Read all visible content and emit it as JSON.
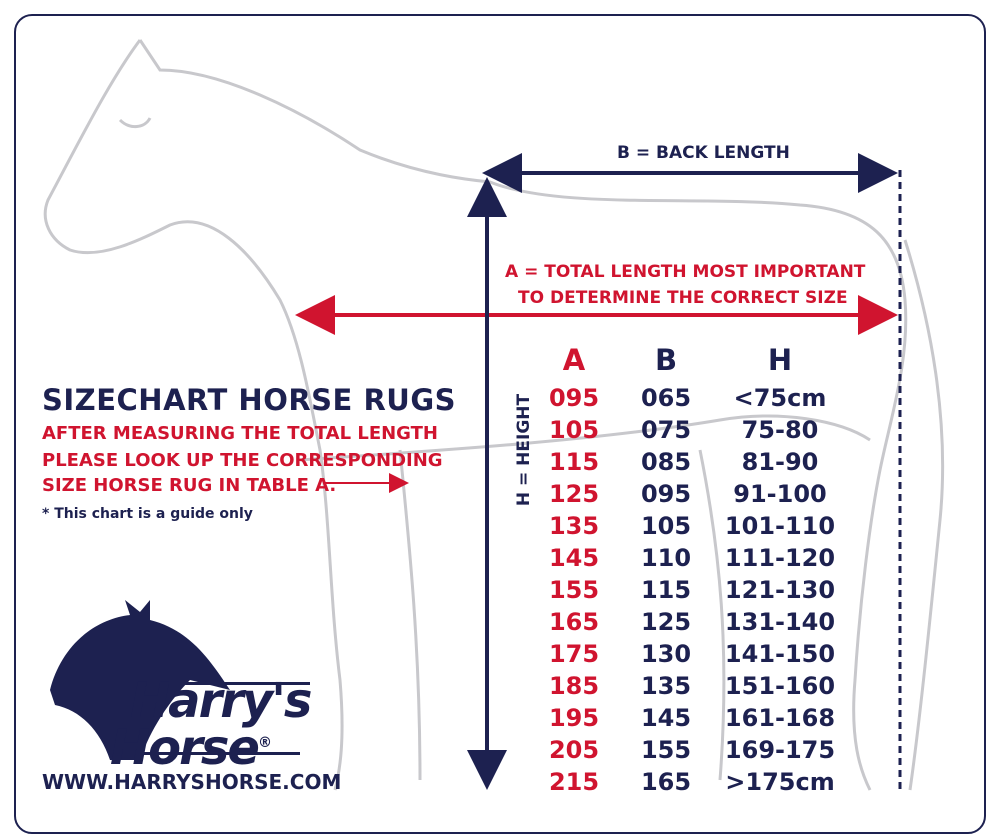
{
  "title": "SIZECHART HORSE RUGS",
  "instructions": [
    "AFTER MEASURING THE TOTAL LENGTH",
    "PLEASE LOOK UP THE CORRESPONDING",
    "SIZE HORSE RUG IN TABLE A."
  ],
  "note": "* This chart is a guide only",
  "labels": {
    "back_length": "B = BACK LENGTH",
    "total_length": [
      "A = TOTAL LENGTH MOST IMPORTANT",
      "TO DETERMINE THE CORRECT SIZE"
    ],
    "height": "H = HEIGHT"
  },
  "brand": {
    "line1": "Harry's",
    "line2": "Horse",
    "registered": "®",
    "url": "WWW.HARRYSHORSE.COM"
  },
  "colors": {
    "navy": "#1d2150",
    "red": "#d0142f",
    "horse_outline": "#c8c8cc"
  },
  "table": {
    "headers": [
      "A",
      "B",
      "H"
    ],
    "rows": [
      [
        "095",
        "065",
        "<75cm"
      ],
      [
        "105",
        "075",
        "75-80"
      ],
      [
        "115",
        "085",
        "81-90"
      ],
      [
        "125",
        "095",
        "91-100"
      ],
      [
        "135",
        "105",
        "101-110"
      ],
      [
        "145",
        "110",
        "111-120"
      ],
      [
        "155",
        "115",
        "121-130"
      ],
      [
        "165",
        "125",
        "131-140"
      ],
      [
        "175",
        "130",
        "141-150"
      ],
      [
        "185",
        "135",
        "151-160"
      ],
      [
        "195",
        "145",
        "161-168"
      ],
      [
        "205",
        "155",
        "169-175"
      ],
      [
        "215",
        "165",
        ">175cm"
      ]
    ]
  }
}
